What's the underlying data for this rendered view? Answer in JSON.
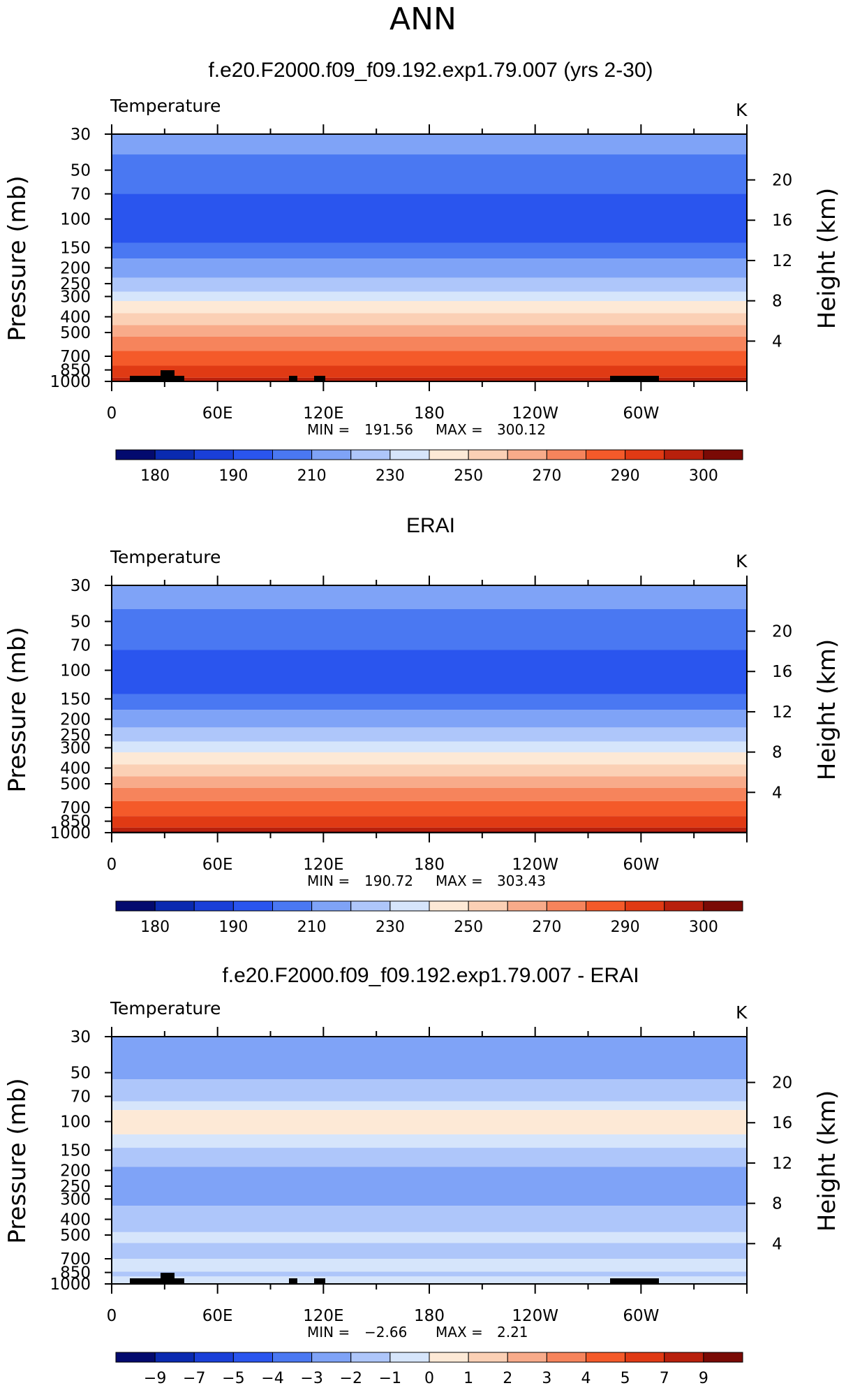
{
  "figure_title": "ANN",
  "chart_data": [
    {
      "type": "heatmap",
      "title": "f.e20.F2000.f09_f09.192.exp1.79.007 (yrs 2-30)",
      "variable_label": "Temperature",
      "units_label": "K",
      "ylabel": "Pressure (mb)",
      "ylabel_right": "Height (km)",
      "y_ticks": [
        "30",
        "50",
        "70",
        "100",
        "150",
        "200",
        "250",
        "300",
        "400",
        "500",
        "700",
        "850",
        "1000"
      ],
      "y_ticks_right": [
        "20",
        "16",
        "12",
        "8",
        "4"
      ],
      "x_ticks": [
        "0",
        "60E",
        "120E",
        "180",
        "120W",
        "60W"
      ],
      "min_label": "MIN =",
      "min_value": "191.56",
      "max_label": "MAX =",
      "max_value": "300.12",
      "colorbar_ticks": [
        "180",
        "190",
        "210",
        "230",
        "250",
        "270",
        "290",
        "300"
      ],
      "bands": [
        {
          "p": 30,
          "level": 5
        },
        {
          "p": 40,
          "level": 4
        },
        {
          "p": 70,
          "level": 3
        },
        {
          "p": 140,
          "level": 4
        },
        {
          "p": 175,
          "level": 5
        },
        {
          "p": 230,
          "level": 6
        },
        {
          "p": 280,
          "level": 7
        },
        {
          "p": 320,
          "level": 8
        },
        {
          "p": 380,
          "level": 9
        },
        {
          "p": 450,
          "level": 10
        },
        {
          "p": 530,
          "level": 11
        },
        {
          "p": 650,
          "level": 12
        },
        {
          "p": 800,
          "level": 13
        },
        {
          "p": 950,
          "level": 14
        }
      ]
    },
    {
      "type": "heatmap",
      "title": "ERAI",
      "variable_label": "Temperature",
      "units_label": "K",
      "ylabel": "Pressure (mb)",
      "ylabel_right": "Height (km)",
      "y_ticks": [
        "30",
        "50",
        "70",
        "100",
        "150",
        "200",
        "250",
        "300",
        "400",
        "500",
        "700",
        "850",
        "1000"
      ],
      "y_ticks_right": [
        "20",
        "16",
        "12",
        "8",
        "4"
      ],
      "x_ticks": [
        "0",
        "60E",
        "120E",
        "180",
        "120W",
        "60W"
      ],
      "min_label": "MIN =",
      "min_value": "190.72",
      "max_label": "MAX =",
      "max_value": "303.43",
      "colorbar_ticks": [
        "180",
        "190",
        "210",
        "230",
        "250",
        "270",
        "290",
        "300"
      ],
      "bands": [
        {
          "p": 30,
          "level": 5
        },
        {
          "p": 42,
          "level": 4
        },
        {
          "p": 75,
          "level": 3
        },
        {
          "p": 140,
          "level": 4
        },
        {
          "p": 175,
          "level": 5
        },
        {
          "p": 225,
          "level": 6
        },
        {
          "p": 275,
          "level": 7
        },
        {
          "p": 320,
          "level": 8
        },
        {
          "p": 380,
          "level": 9
        },
        {
          "p": 450,
          "level": 10
        },
        {
          "p": 530,
          "level": 11
        },
        {
          "p": 640,
          "level": 12
        },
        {
          "p": 790,
          "level": 13
        },
        {
          "p": 930,
          "level": 14
        },
        {
          "p": 980,
          "level": 15
        }
      ]
    },
    {
      "type": "heatmap",
      "title": "f.e20.F2000.f09_f09.192.exp1.79.007 - ERAI",
      "variable_label": "Temperature",
      "units_label": "K",
      "ylabel": "Pressure (mb)",
      "ylabel_right": "Height (km)",
      "y_ticks": [
        "30",
        "50",
        "70",
        "100",
        "150",
        "200",
        "250",
        "300",
        "400",
        "500",
        "700",
        "850",
        "1000"
      ],
      "y_ticks_right": [
        "20",
        "16",
        "12",
        "8",
        "4"
      ],
      "x_ticks": [
        "0",
        "60E",
        "120E",
        "180",
        "120W",
        "60W"
      ],
      "min_label": "MIN =",
      "min_value": "−2.66",
      "max_label": "MAX =",
      "max_value": "2.21",
      "colorbar_ticks": [
        "−9",
        "−7",
        "−5",
        "−4",
        "−3",
        "−2",
        "−1",
        "0",
        "1",
        "2",
        "3",
        "4",
        "5",
        "7",
        "9"
      ],
      "bands": [
        {
          "p": 30,
          "level": 5
        },
        {
          "p": 55,
          "level": 6
        },
        {
          "p": 75,
          "level": 7
        },
        {
          "p": 85,
          "level": 8
        },
        {
          "p": 120,
          "level": 7
        },
        {
          "p": 145,
          "level": 6
        },
        {
          "p": 190,
          "level": 5
        },
        {
          "p": 330,
          "level": 6
        },
        {
          "p": 480,
          "level": 7
        },
        {
          "p": 560,
          "level": 6
        },
        {
          "p": 700,
          "level": 7
        },
        {
          "p": 840,
          "level": 6
        },
        {
          "p": 900,
          "level": 7
        }
      ]
    }
  ],
  "colors": {
    "scale": [
      "#030a6e",
      "#0a2ab0",
      "#1a3fd8",
      "#2a55ee",
      "#4a78f2",
      "#7fa3f7",
      "#aec6fa",
      "#d6e5fb",
      "#fde9d6",
      "#fbd0b5",
      "#f8ab8a",
      "#f6845c",
      "#f45a2a",
      "#e03a14",
      "#b8200c",
      "#7a0a05"
    ]
  }
}
